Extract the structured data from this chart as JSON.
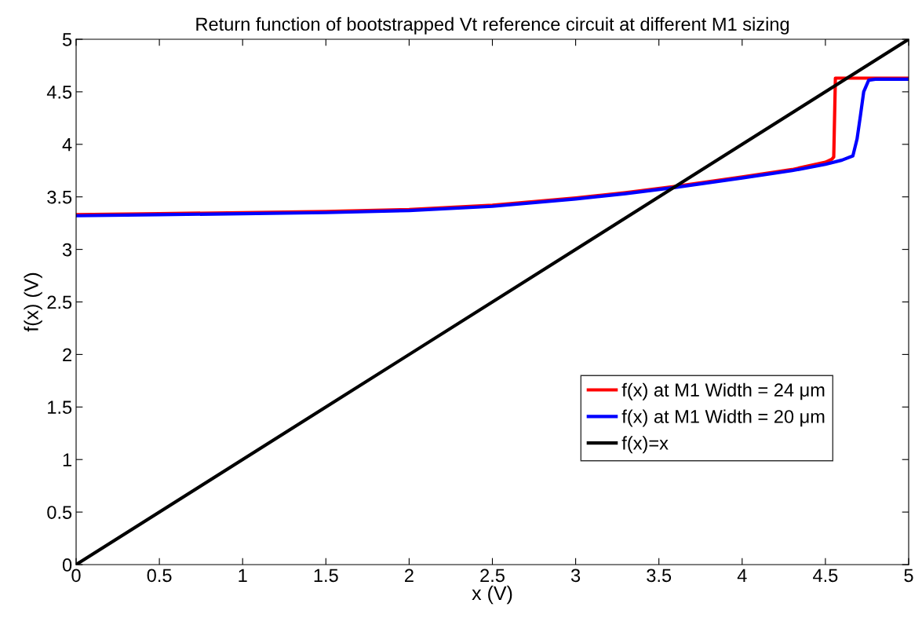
{
  "chart_data": {
    "type": "line",
    "title": "Return function of bootstrapped Vt reference circuit at different M1 sizing",
    "xlabel": "x (V)",
    "ylabel": "f(x) (V)",
    "series": [
      {
        "name": "f(x) at M1 Width = 24 μm",
        "color": "#ff0000",
        "x": [
          0,
          0.5,
          1,
          1.5,
          2,
          2.5,
          3,
          3.3,
          3.6,
          4,
          4.3,
          4.5,
          4.54,
          4.55,
          4.56,
          4.6,
          5
        ],
        "values": [
          3.33,
          3.34,
          3.35,
          3.36,
          3.38,
          3.42,
          3.49,
          3.54,
          3.6,
          3.69,
          3.76,
          3.83,
          3.86,
          3.88,
          4.63,
          4.63,
          4.63
        ]
      },
      {
        "name": "f(x) at M1 Width = 20 μm",
        "color": "#0000ff",
        "x": [
          0,
          0.5,
          1,
          1.5,
          2,
          2.5,
          3,
          3.3,
          3.6,
          4,
          4.3,
          4.5,
          4.6,
          4.665,
          4.69,
          4.71,
          4.73,
          4.76,
          4.8,
          5
        ],
        "values": [
          3.32,
          3.33,
          3.34,
          3.35,
          3.37,
          3.41,
          3.48,
          3.53,
          3.59,
          3.68,
          3.75,
          3.81,
          3.85,
          3.89,
          4.05,
          4.27,
          4.5,
          4.61,
          4.62,
          4.62
        ]
      },
      {
        "name": "f(x)=x",
        "color": "#000000",
        "x": [
          0,
          5
        ],
        "values": [
          0,
          5
        ]
      }
    ],
    "xlim": [
      0,
      5
    ],
    "ylim": [
      0,
      5
    ],
    "xticks": [
      0,
      0.5,
      1,
      1.5,
      2,
      2.5,
      3,
      3.5,
      4,
      4.5,
      5
    ],
    "yticks": [
      0,
      0.5,
      1,
      1.5,
      2,
      2.5,
      3,
      3.5,
      4,
      4.5,
      5
    ],
    "grid": false,
    "legend": "lower right",
    "marker": "none",
    "line_style": "solid"
  }
}
